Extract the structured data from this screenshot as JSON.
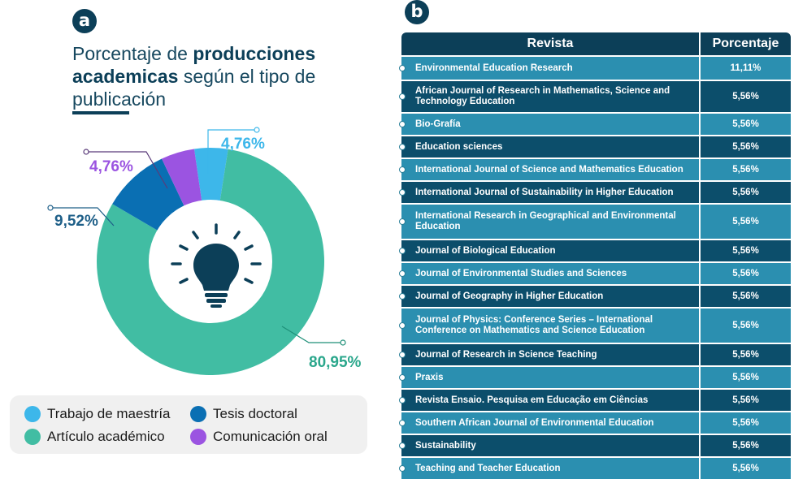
{
  "panel_a": {
    "badge": "a",
    "title_parts": [
      {
        "text": "Porcentaje de ",
        "bold": false
      },
      {
        "text": "producciones academicas",
        "bold": true
      },
      {
        "text": " según el tipo de publicación",
        "bold": false
      }
    ]
  },
  "panel_b": {
    "badge": "b"
  },
  "colors": {
    "trabajo": "#3db7ea",
    "articulo": "#41bda3",
    "tesis": "#0a6fb3",
    "comunicacion": "#9b54e1",
    "dark": "#0c3f58",
    "row_dark": "#0c4e6b",
    "row_light": "#2b8fb0"
  },
  "chart_data": [
    {
      "type": "pie",
      "title": "Porcentaje de producciones academicas según el tipo de publicación",
      "slices": [
        {
          "label": "Trabajo de maestría",
          "value": 4.76,
          "display": "4,76%",
          "color": "#3db7ea"
        },
        {
          "label": "Artículo académico",
          "value": 80.95,
          "display": "80,95%",
          "color": "#41bda3"
        },
        {
          "label": "Tesis doctoral",
          "value": 9.52,
          "display": "9,52%",
          "color": "#0a6fb3"
        },
        {
          "label": "Comunicación oral",
          "value": 4.76,
          "display": "4,76%",
          "color": "#9b54e1"
        }
      ],
      "legend": [
        "Trabajo de maestría",
        "Tesis doctoral",
        "Artículo académico",
        "Comunicación oral"
      ],
      "center_icon": "lightbulb-icon"
    },
    {
      "type": "table",
      "columns": [
        "Revista",
        "Porcentaje"
      ],
      "rows": [
        {
          "name": "Environmental Education Research",
          "value": "11,11%"
        },
        {
          "name": "African Journal of Research in Mathematics, Science and Technology Education",
          "value": "5,56%"
        },
        {
          "name": "Bio-Grafía",
          "value": "5,56%"
        },
        {
          "name": "Education sciences",
          "value": "5,56%"
        },
        {
          "name": "International Journal of Science and Mathematics Education",
          "value": "5,56%"
        },
        {
          "name": "International Journal of Sustainability in Higher Education",
          "value": "5,56%"
        },
        {
          "name": "International Research in Geographical and Environmental Education",
          "value": "5,56%"
        },
        {
          "name": "Journal of Biological Education",
          "value": "5,56%"
        },
        {
          "name": "Journal of Environmental Studies and Sciences",
          "value": "5,56%"
        },
        {
          "name": "Journal of Geography in Higher Education",
          "value": "5,56%"
        },
        {
          "name": "Journal of Physics: Conference Series – International Conference on Mathematics and Science Education",
          "value": "5,56%"
        },
        {
          "name": "Journal of Research in Science Teaching",
          "value": "5,56%"
        },
        {
          "name": "Praxis",
          "value": "5,56%"
        },
        {
          "name": "Revista Ensaio. Pesquisa em Educação em Ciências",
          "value": "5,56%"
        },
        {
          "name": "Southern African Journal of Environmental Education",
          "value": "5,56%"
        },
        {
          "name": "Sustainability",
          "value": "5,56%"
        },
        {
          "name": "Teaching and Teacher Education",
          "value": "5,56%"
        }
      ]
    }
  ]
}
